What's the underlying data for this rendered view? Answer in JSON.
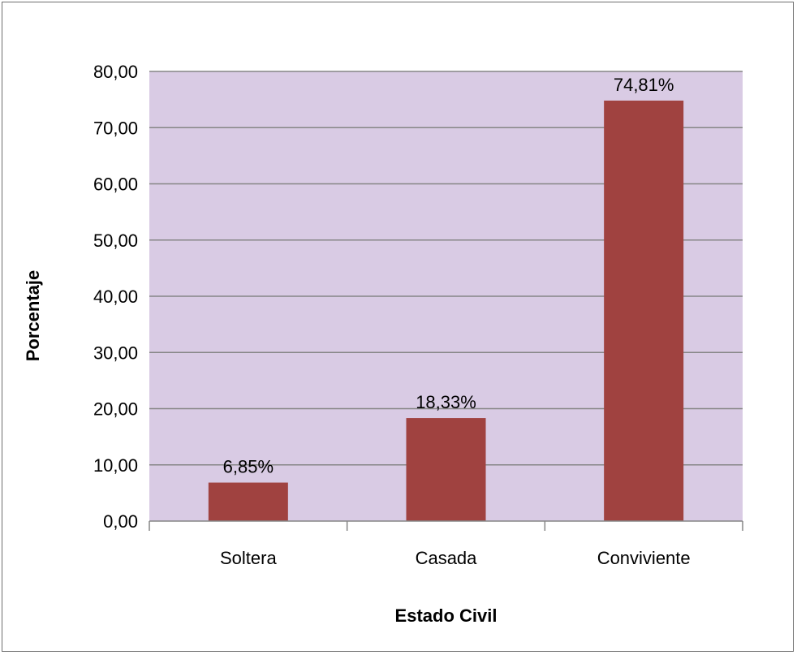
{
  "chart_data": {
    "type": "bar",
    "categories": [
      "Soltera",
      "Casada",
      "Conviviente"
    ],
    "values": [
      6.85,
      18.33,
      74.81
    ],
    "data_labels": [
      "6,85%",
      "18,33%",
      "74,81%"
    ],
    "y_ticks": [
      0,
      10,
      20,
      30,
      40,
      50,
      60,
      70,
      80
    ],
    "y_tick_labels": [
      "0,00",
      "10,00",
      "20,00",
      "30,00",
      "40,00",
      "50,00",
      "60,00",
      "70,00",
      "80,00"
    ],
    "xlabel": "Estado Civil",
    "ylabel": "Porcentaje",
    "ylim": [
      0,
      80
    ],
    "grid": true,
    "legend": "none",
    "colors": {
      "bar": "#a04240",
      "plot_background": "#d9cbe4",
      "gridline": "#868686",
      "axis": "#868686"
    }
  }
}
